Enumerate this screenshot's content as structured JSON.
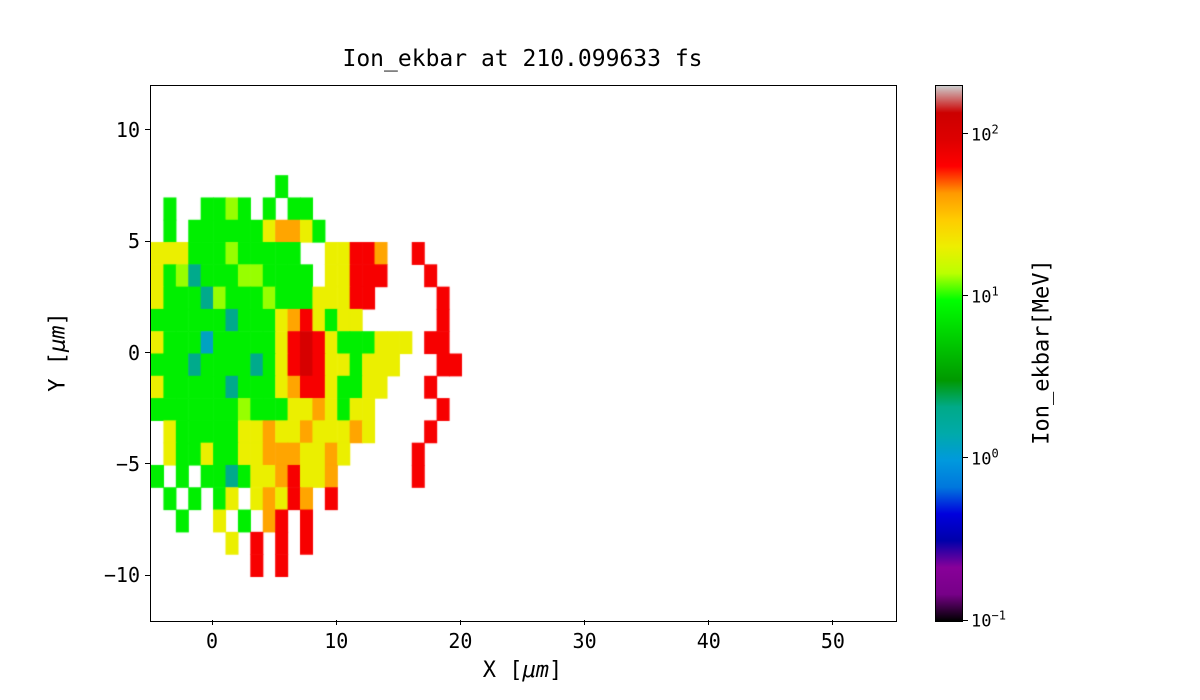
{
  "chart_data": {
    "type": "heatmap",
    "title": "Ion_ekbar at 210.099633 fs",
    "xlabel_parts": [
      "X [",
      "μm",
      "]"
    ],
    "ylabel_parts": [
      "Y [",
      "μm",
      "]"
    ],
    "xlim": [
      -5,
      55
    ],
    "ylim": [
      -12,
      12
    ],
    "xticks": {
      "values": [
        0,
        10,
        20,
        30,
        40,
        50
      ],
      "labels": [
        "0",
        "10",
        "20",
        "30",
        "40",
        "50"
      ]
    },
    "yticks": {
      "values": [
        -10,
        -5,
        0,
        5,
        10
      ],
      "labels": [
        "−10",
        "−5",
        "0",
        "5",
        "10"
      ]
    },
    "value_scale": "log",
    "vmin": 0.1,
    "vmax": 200,
    "colorbar": {
      "label": "Ion_ekbar[MeV]",
      "ticks": [
        {
          "value": 100,
          "base": "10",
          "exp": "2"
        },
        {
          "value": 10,
          "base": "10",
          "exp": "1"
        },
        {
          "value": 1,
          "base": "10",
          "exp": "0"
        },
        {
          "value": 0.1,
          "base": "10",
          "exp": "−1"
        }
      ]
    },
    "colormap": {
      "name": "nipy_spectral",
      "stops": [
        [
          0.0,
          "#000000"
        ],
        [
          0.05,
          "#770088"
        ],
        [
          0.1,
          "#880099"
        ],
        [
          0.15,
          "#0000aa"
        ],
        [
          0.2,
          "#0000dd"
        ],
        [
          0.25,
          "#0077dd"
        ],
        [
          0.3,
          "#0099dd"
        ],
        [
          0.35,
          "#00aaaa"
        ],
        [
          0.4,
          "#00aa88"
        ],
        [
          0.45,
          "#009900"
        ],
        [
          0.5,
          "#00bb00"
        ],
        [
          0.55,
          "#00dd00"
        ],
        [
          0.6,
          "#00ff00"
        ],
        [
          0.65,
          "#bbff00"
        ],
        [
          0.7,
          "#eeee00"
        ],
        [
          0.75,
          "#ffcc00"
        ],
        [
          0.8,
          "#ff9900"
        ],
        [
          0.85,
          "#ff0000"
        ],
        [
          0.9,
          "#dd0000"
        ],
        [
          0.95,
          "#cc0000"
        ],
        [
          1.0,
          "#cccccc"
        ]
      ]
    },
    "grid": {
      "x0": -5,
      "dx": 1,
      "y_top": 9,
      "dy": 1,
      "palette": {
        "c": 1.2,
        "t": 2,
        "g": 8,
        "G": 13,
        "y": 20,
        "o": 40,
        "r": 70,
        "R": 110
      },
      "rows": [
        "..........................",
        "..........g...............",
        ".g..ggGg.g.gg.............",
        ".g.ggggggyooyg............",
        "yyygggGggggg..yyrro..r....",
        "ygGtgggGGgggg.yyrrr...r...",
        "ygggtGgggGgggyyyrr.....r..",
        "ggggggtgggyorygyy......r..",
        "ygggcgggggyrRrygggyyy.rr..",
        "gggtggggtgyrRryygyyy...rr.",
        "ygggggtgggyorryggyy...r...",
        "gggggggGgggyyoygyy.....r..",
        ".ygggggyyoyyoyyyoy....r...",
        ".yggyggyyoooyyoy.....r....",
        "g.g.ggtgyyoryyo......r....",
        ".g.g.gy.yoyro.r...........",
        "..g..y.g.or.r.............",
        "......y.r.r.r.............",
        "........r.r...............",
        ".........................."
      ]
    }
  }
}
